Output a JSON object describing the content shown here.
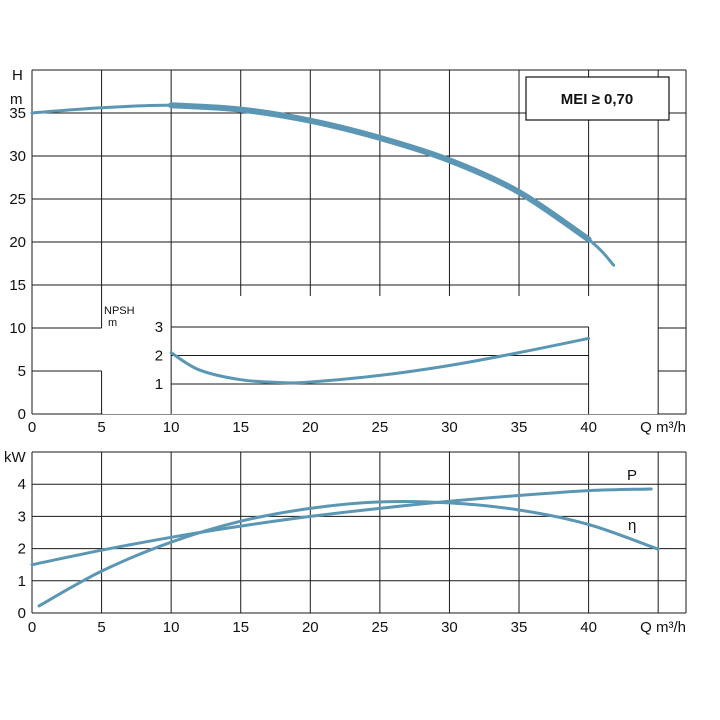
{
  "chart_data": [
    {
      "type": "line",
      "ylabel": [
        "H",
        "m"
      ],
      "xlabel": "Q m³/h",
      "xlim": [
        0,
        47
      ],
      "ylim": [
        0,
        40
      ],
      "x_ticks": [
        0,
        5,
        10,
        15,
        20,
        25,
        30,
        35,
        40
      ],
      "y_ticks": [
        0,
        5,
        10,
        15,
        20,
        25,
        30,
        35
      ],
      "badge": "MEI ≥ 0,70",
      "grid": true,
      "series": [
        {
          "name": "",
          "x": [
            0,
            5,
            10,
            15,
            20,
            25,
            30,
            35,
            40,
            41.8
          ],
          "y": [
            35.0,
            35.6,
            35.9,
            35.4,
            34.1,
            32.1,
            29.5,
            25.8,
            20.3,
            17.3
          ]
        }
      ],
      "inset": {
        "ylabel": [
          "NPSH",
          "m"
        ],
        "y_ticks": [
          1,
          2,
          3
        ],
        "xlim": [
          10,
          40
        ],
        "ylim": [
          0,
          3
        ],
        "series": [
          {
            "name": "",
            "x": [
              10,
              12,
              15,
              18,
              20,
              25,
              30,
              35,
              40
            ],
            "y": [
              2.1,
              1.5,
              1.15,
              1.05,
              1.07,
              1.3,
              1.65,
              2.1,
              2.6
            ]
          }
        ]
      }
    },
    {
      "type": "line",
      "ylabel": "kW",
      "xlabel": "Q m³/h",
      "xlim": [
        0,
        47
      ],
      "ylim": [
        0,
        5
      ],
      "x_ticks": [
        0,
        5,
        10,
        15,
        20,
        25,
        30,
        35,
        40
      ],
      "y_ticks": [
        0,
        1,
        2,
        3,
        4
      ],
      "grid": true,
      "series": [
        {
          "name": "P",
          "x": [
            0,
            5,
            10,
            15,
            20,
            25,
            30,
            35,
            40,
            44.5
          ],
          "y": [
            1.5,
            1.95,
            2.35,
            2.7,
            3.0,
            3.25,
            3.47,
            3.65,
            3.8,
            3.85
          ]
        },
        {
          "name": "η",
          "x": [
            0.5,
            5,
            10,
            15,
            20,
            25,
            30,
            35,
            40,
            45
          ],
          "y": [
            0.22,
            1.3,
            2.2,
            2.85,
            3.25,
            3.45,
            3.42,
            3.2,
            2.75,
            1.98
          ]
        }
      ]
    }
  ]
}
